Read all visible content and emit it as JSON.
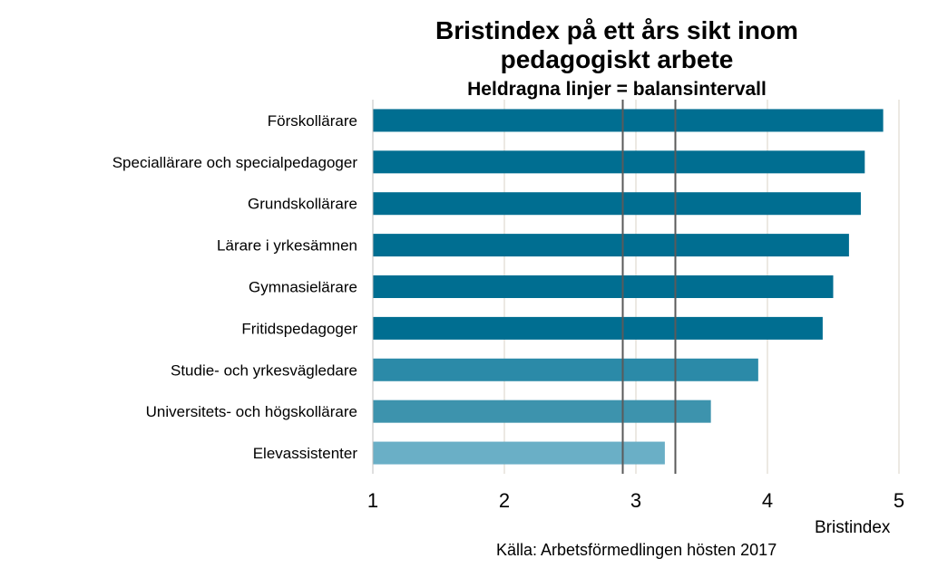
{
  "chart_data": {
    "type": "bar",
    "orientation": "horizontal",
    "title": "Bristindex på ett års sikt inom pedagogiskt arbete",
    "title_lines": [
      "Bristindex på ett års sikt inom",
      "pedagogiskt arbete"
    ],
    "subtitle": "Heldragna linjer = balansintervall",
    "xlabel": "Bristindex",
    "source": "Källa: Arbetsförmedlingen hösten 2017",
    "xlim": [
      1,
      5
    ],
    "xticks": [
      1,
      2,
      3,
      4,
      5
    ],
    "categories": [
      "Förskollärare",
      "Speciallärare och specialpedagoger",
      "Grundskollärare",
      "Lärare i yrkesämnen",
      "Gymnasielärare",
      "Fritidspedagoger",
      "Studie- och yrkesvägledare",
      "Universitets- och högskollärare",
      "Elevassistenter"
    ],
    "values": [
      4.88,
      4.74,
      4.71,
      4.62,
      4.5,
      4.42,
      3.93,
      3.57,
      3.22
    ],
    "bar_colors": [
      "#006e91",
      "#006e91",
      "#006e91",
      "#006e91",
      "#006e91",
      "#006e91",
      "#2b8aa8",
      "#3d93ad",
      "#6aafc6"
    ],
    "balance_interval": [
      2.9,
      3.3
    ],
    "grid": true,
    "legend": "none"
  }
}
